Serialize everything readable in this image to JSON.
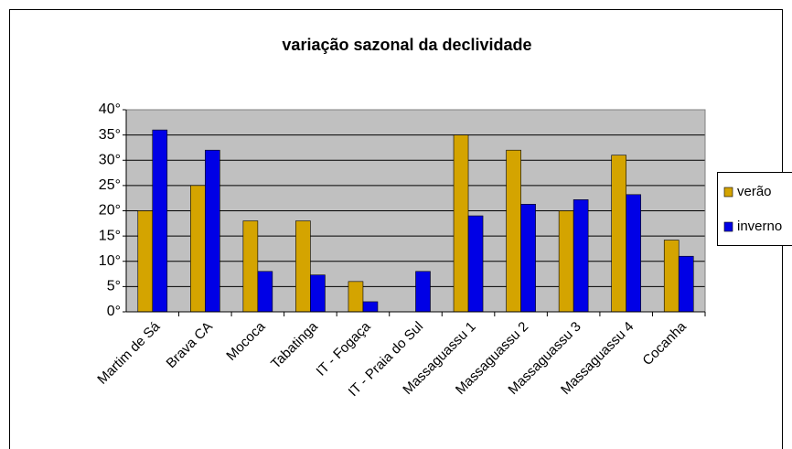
{
  "chart_data": {
    "type": "bar",
    "title": "variação sazonal da declividade",
    "categories": [
      "Martim de Sá",
      "Brava CA",
      "Mococa",
      "Tabatinga",
      "IT - Fogaça",
      "IT - Praia do Sul",
      "Massaguassu 1",
      "Massaguassu 2",
      "Massaguassu 3",
      "Massaguassu 4",
      "Cocanha"
    ],
    "series": [
      {
        "name": "verão",
        "color": "#d4a400",
        "values": [
          20,
          25,
          18,
          18,
          6,
          null,
          35,
          32,
          20,
          31,
          14.2
        ]
      },
      {
        "name": "inverno",
        "color": "#0000e6",
        "values": [
          36,
          32,
          8,
          7.3,
          2,
          8,
          19,
          21.3,
          22.2,
          23.2,
          11
        ]
      }
    ],
    "ylim": [
      0,
      40
    ],
    "yticks": [
      {
        "value": 0,
        "label": "0°"
      },
      {
        "value": 5,
        "label": "5°"
      },
      {
        "value": 10,
        "label": "10°"
      },
      {
        "value": 15,
        "label": "15°"
      },
      {
        "value": 20,
        "label": "20°"
      },
      {
        "value": 25,
        "label": "25°"
      },
      {
        "value": 30,
        "label": "30°"
      },
      {
        "value": 35,
        "label": "35°"
      },
      {
        "value": 40,
        "label": "40°"
      }
    ],
    "grid": true,
    "legend": "right"
  }
}
